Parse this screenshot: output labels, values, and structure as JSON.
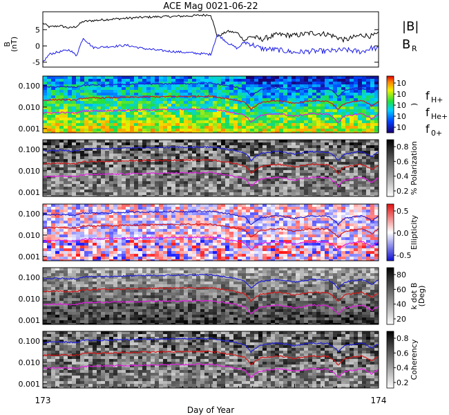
{
  "title": "ACE Mag 0021-06-22",
  "xlabel": "Day of Year",
  "x_ticks": [
    "173",
    "174"
  ],
  "legend_top": {
    "b_total": "|B|",
    "b_r": "B",
    "b_r_sub": "R",
    "colors": {
      "b_total": "#000000",
      "b_r": "#1a1ae6"
    }
  },
  "legend_freq": {
    "h_plus": {
      "main": "f",
      "sub": "H+",
      "color": "#2020d0"
    },
    "he_plus": {
      "main": "f",
      "sub": "He+",
      "color": "#d01818"
    },
    "o_plus": {
      "main": "f",
      "sub": "0+",
      "color": "#e020e0"
    }
  },
  "chart_data": [
    {
      "type": "line",
      "panel": "B",
      "ylabel": "B",
      "ylabel_unit": "(nT)",
      "y_ticks": [
        "-5",
        "0",
        "5"
      ],
      "ylim": [
        -6.5,
        10.5
      ],
      "xlim": [
        173.0,
        174.0
      ],
      "series": [
        {
          "name": "|B|",
          "color": "#000000",
          "x": [
            173.0,
            173.02,
            173.05,
            173.08,
            173.1,
            173.12,
            173.15,
            173.2,
            173.25,
            173.3,
            173.35,
            173.4,
            173.45,
            173.5,
            173.52,
            173.55,
            173.58,
            173.6,
            173.62,
            173.65,
            173.7,
            173.75,
            173.8,
            173.85,
            173.9,
            173.95,
            173.98,
            174.0
          ],
          "y": [
            7.0,
            5.8,
            6.2,
            5.5,
            6.0,
            7.5,
            7.8,
            8.2,
            8.5,
            8.8,
            9.0,
            9.1,
            9.3,
            9.6,
            2.8,
            4.5,
            4.0,
            1.6,
            3.0,
            2.0,
            3.5,
            3.2,
            4.0,
            3.6,
            1.8,
            3.4,
            3.0,
            3.6
          ]
        },
        {
          "name": "B",
          "color": "#1a1ae6",
          "x": [
            173.0,
            173.02,
            173.05,
            173.08,
            173.1,
            173.12,
            173.15,
            173.2,
            173.25,
            173.3,
            173.35,
            173.4,
            173.45,
            173.5,
            173.52,
            173.55,
            173.58,
            173.6,
            173.62,
            173.65,
            173.7,
            173.75,
            173.8,
            173.85,
            173.9,
            173.95,
            173.98,
            174.0
          ],
          "y": [
            -5.0,
            -2.5,
            -1.8,
            -1.2,
            -3.0,
            2.5,
            -0.5,
            -0.2,
            0.2,
            -0.8,
            -1.4,
            -1.8,
            -2.2,
            -2.6,
            3.6,
            1.0,
            -0.8,
            1.2,
            0.6,
            -0.8,
            -1.2,
            -2.0,
            -1.6,
            -1.6,
            -1.2,
            -1.8,
            -0.6,
            -1.0
          ]
        }
      ]
    },
    {
      "type": "heatmap",
      "panel": "power",
      "y_ticks": [
        "0.100",
        "0.010",
        "0.001"
      ],
      "colorbar": "rainbow",
      "colorbar_label": ")",
      "colorbar_ticks": [
        "10",
        "10",
        "10",
        "10",
        "10"
      ]
    },
    {
      "type": "heatmap",
      "panel": "polarization",
      "y_ticks": [
        "0.100",
        "0.010",
        "0.001"
      ],
      "colorbar": "gray",
      "colorbar_label": "% Polarization",
      "colorbar_ticks": [
        "0.8",
        "0.6",
        "0.4",
        "0.2"
      ]
    },
    {
      "type": "heatmap",
      "panel": "ellipticity",
      "y_ticks": [
        "0.100",
        "0.010",
        "0.001"
      ],
      "colorbar": "redblue",
      "colorbar_label": "Ellipticity",
      "colorbar_ticks": [
        "0.5",
        "0.0",
        "-0.5"
      ]
    },
    {
      "type": "heatmap",
      "panel": "kdotb",
      "y_ticks": [
        "0.100",
        "0.010",
        "0.001"
      ],
      "colorbar": "gray",
      "colorbar_label": "k dot B",
      "colorbar_label2": "(Deg)",
      "colorbar_ticks": [
        "80",
        "60",
        "40",
        "20"
      ]
    },
    {
      "type": "heatmap",
      "panel": "coherency",
      "y_ticks": [
        "0.100",
        "0.010",
        "0.001"
      ],
      "colorbar": "gray",
      "colorbar_label": "Coherency",
      "colorbar_ticks": [
        "0.8",
        "0.6",
        "0.4",
        "0.2"
      ]
    }
  ],
  "gyro_lines": {
    "x": [
      173.0,
      173.05,
      173.1,
      173.12,
      173.2,
      173.3,
      173.4,
      173.5,
      173.55,
      173.6,
      173.62,
      173.65,
      173.7,
      173.75,
      173.8,
      173.85,
      173.88,
      173.9,
      173.95,
      173.98,
      174.0
    ],
    "f_h_plus": [
      0.085,
      0.09,
      0.085,
      0.105,
      0.11,
      0.12,
      0.125,
      0.13,
      0.1,
      0.07,
      0.03,
      0.065,
      0.08,
      0.06,
      0.08,
      0.075,
      0.03,
      0.06,
      0.08,
      0.045,
      0.075
    ]
  }
}
